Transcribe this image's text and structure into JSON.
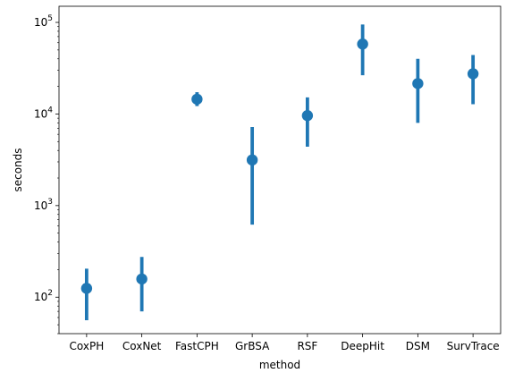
{
  "chart_data": {
    "type": "scatter",
    "title": "",
    "xlabel": "method",
    "ylabel": "seconds",
    "yscale": "log",
    "ylim": [
      40,
      150000
    ],
    "grid": false,
    "legend": "none",
    "categories": [
      "CoxPH",
      "CoxNet",
      "FastCPH",
      "GrBSA",
      "RSF",
      "DeepHit",
      "DSM",
      "SurvTrace"
    ],
    "values": [
      125,
      158,
      14500,
      3150,
      9600,
      58000,
      21500,
      27500
    ],
    "error_low": [
      56,
      70,
      12200,
      620,
      4400,
      26500,
      8000,
      12800
    ],
    "error_high": [
      205,
      275,
      17300,
      7200,
      15200,
      95000,
      40000,
      44000
    ],
    "yticks": [
      {
        "value": 100,
        "base": "10",
        "exp": "2"
      },
      {
        "value": 1000,
        "base": "10",
        "exp": "3"
      },
      {
        "value": 10000,
        "base": "10",
        "exp": "4"
      },
      {
        "value": 100000,
        "base": "10",
        "exp": "5"
      }
    ],
    "color": "#1f77b4"
  }
}
